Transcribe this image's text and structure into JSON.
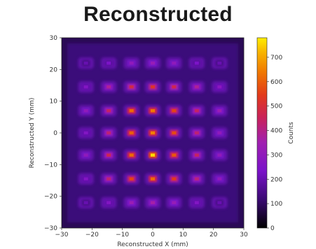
{
  "chart_data": {
    "type": "heatmap",
    "title": "Reconstructed",
    "xlabel": "Reconstructed X (mm)",
    "ylabel": "Reconstructed Y (mm)",
    "xlim": [
      -30,
      30
    ],
    "ylim": [
      -30,
      30
    ],
    "xticks": [
      -30,
      -20,
      -10,
      0,
      10,
      20,
      30
    ],
    "yticks": [
      -30,
      -20,
      -10,
      0,
      10,
      20,
      30
    ],
    "colorbar": {
      "label": "Counts",
      "range": [
        0,
        780
      ],
      "ticks": [
        0,
        100,
        200,
        300,
        400,
        500,
        600,
        700
      ],
      "colormap": "gnuplot (black-purple-red-orange-yellow)"
    },
    "grid": false,
    "spot_x": [
      -22,
      -14.5,
      -7,
      0,
      7,
      14.5,
      22
    ],
    "spot_y": [
      22,
      14.5,
      7,
      0,
      -7,
      -14.5,
      -22
    ],
    "spot_peak_counts": [
      [
        200,
        240,
        300,
        320,
        300,
        240,
        200
      ],
      [
        260,
        380,
        480,
        520,
        470,
        380,
        280
      ],
      [
        300,
        440,
        620,
        640,
        560,
        440,
        330
      ],
      [
        260,
        420,
        600,
        650,
        570,
        420,
        300
      ],
      [
        300,
        460,
        620,
        760,
        590,
        440,
        300
      ],
      [
        260,
        420,
        560,
        620,
        540,
        410,
        300
      ],
      [
        200,
        260,
        330,
        360,
        320,
        260,
        200
      ]
    ]
  }
}
